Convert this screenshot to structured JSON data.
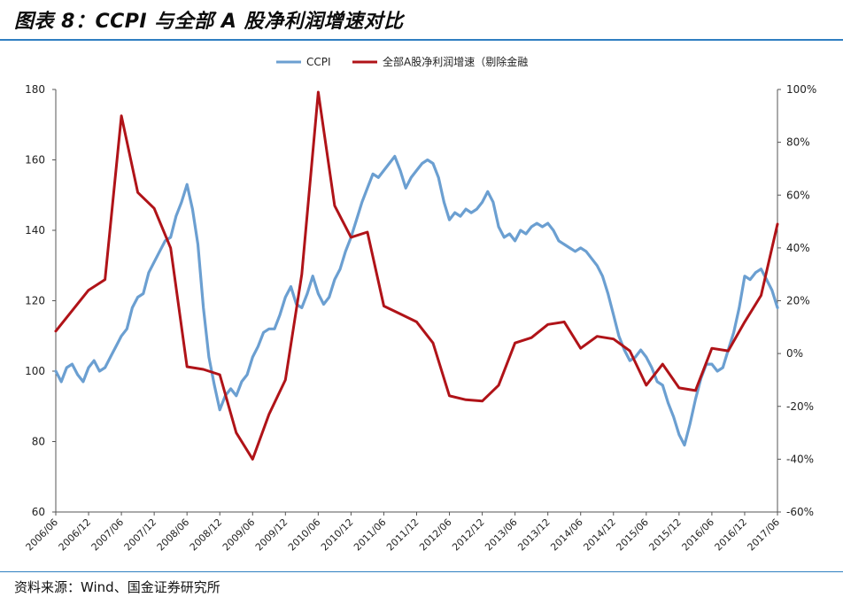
{
  "title": "图表 8：CCPI 与全部 A 股净利润增速对比",
  "source": "资料来源：Wind、国金证券研究所",
  "chart_data": {
    "type": "line",
    "title": "图表 8：CCPI 与全部 A 股净利润增速对比",
    "legend_position": "top-center",
    "x_tick_labels": [
      "2006/06",
      "2006/12",
      "2007/06",
      "2007/12",
      "2008/06",
      "2008/12",
      "2009/06",
      "2009/12",
      "2010/06",
      "2010/12",
      "2011/06",
      "2011/12",
      "2012/06",
      "2012/12",
      "2013/06",
      "2013/12",
      "2014/06",
      "2014/12",
      "2015/06",
      "2015/12",
      "2016/06",
      "2016/12",
      "2017/06"
    ],
    "left_axis": {
      "range": [
        60,
        180
      ],
      "ticks": [
        "60",
        "80",
        "100",
        "120",
        "140",
        "160",
        "180"
      ]
    },
    "right_axis": {
      "range": [
        -60,
        100
      ],
      "ticks": [
        "-60%",
        "-40%",
        "-20%",
        "0%",
        "20%",
        "40%",
        "60%",
        "80%",
        "100%"
      ]
    },
    "grid": false,
    "series": [
      {
        "name": "CCPI",
        "axis": "left",
        "color": "#6b9fd1",
        "points": [
          [
            "2006/06",
            100
          ],
          [
            "2006/07",
            97
          ],
          [
            "2006/08",
            101
          ],
          [
            "2006/09",
            102
          ],
          [
            "2006/10",
            99
          ],
          [
            "2006/11",
            97
          ],
          [
            "2006/12",
            101
          ],
          [
            "2007/01",
            103
          ],
          [
            "2007/02",
            100
          ],
          [
            "2007/03",
            101
          ],
          [
            "2007/04",
            104
          ],
          [
            "2007/05",
            107
          ],
          [
            "2007/06",
            110
          ],
          [
            "2007/07",
            112
          ],
          [
            "2007/08",
            118
          ],
          [
            "2007/09",
            121
          ],
          [
            "2007/10",
            122
          ],
          [
            "2007/11",
            128
          ],
          [
            "2007/12",
            131
          ],
          [
            "2008/01",
            134
          ],
          [
            "2008/02",
            137
          ],
          [
            "2008/03",
            138
          ],
          [
            "2008/04",
            144
          ],
          [
            "2008/05",
            148
          ],
          [
            "2008/06",
            153
          ],
          [
            "2008/07",
            146
          ],
          [
            "2008/08",
            136
          ],
          [
            "2008/09",
            118
          ],
          [
            "2008/10",
            104
          ],
          [
            "2008/11",
            96
          ],
          [
            "2008/12",
            89
          ],
          [
            "2009/01",
            93
          ],
          [
            "2009/02",
            95
          ],
          [
            "2009/03",
            93
          ],
          [
            "2009/04",
            97
          ],
          [
            "2009/05",
            99
          ],
          [
            "2009/06",
            104
          ],
          [
            "2009/07",
            107
          ],
          [
            "2009/08",
            111
          ],
          [
            "2009/09",
            112
          ],
          [
            "2009/10",
            112
          ],
          [
            "2009/11",
            116
          ],
          [
            "2009/12",
            121
          ],
          [
            "2010/01",
            124
          ],
          [
            "2010/02",
            119
          ],
          [
            "2010/03",
            118
          ],
          [
            "2010/04",
            122
          ],
          [
            "2010/05",
            127
          ],
          [
            "2010/06",
            122
          ],
          [
            "2010/07",
            119
          ],
          [
            "2010/08",
            121
          ],
          [
            "2010/09",
            126
          ],
          [
            "2010/10",
            129
          ],
          [
            "2010/11",
            134
          ],
          [
            "2010/12",
            138
          ],
          [
            "2011/01",
            143
          ],
          [
            "2011/02",
            148
          ],
          [
            "2011/03",
            152
          ],
          [
            "2011/04",
            156
          ],
          [
            "2011/05",
            155
          ],
          [
            "2011/06",
            157
          ],
          [
            "2011/07",
            159
          ],
          [
            "2011/08",
            161
          ],
          [
            "2011/09",
            157
          ],
          [
            "2011/10",
            152
          ],
          [
            "2011/11",
            155
          ],
          [
            "2011/12",
            157
          ],
          [
            "2012/01",
            159
          ],
          [
            "2012/02",
            160
          ],
          [
            "2012/03",
            159
          ],
          [
            "2012/04",
            155
          ],
          [
            "2012/05",
            148
          ],
          [
            "2012/06",
            143
          ],
          [
            "2012/07",
            145
          ],
          [
            "2012/08",
            144
          ],
          [
            "2012/09",
            146
          ],
          [
            "2012/10",
            145
          ],
          [
            "2012/11",
            146
          ],
          [
            "2012/12",
            148
          ],
          [
            "2013/01",
            151
          ],
          [
            "2013/02",
            148
          ],
          [
            "2013/03",
            141
          ],
          [
            "2013/04",
            138
          ],
          [
            "2013/05",
            139
          ],
          [
            "2013/06",
            137
          ],
          [
            "2013/07",
            140
          ],
          [
            "2013/08",
            139
          ],
          [
            "2013/09",
            141
          ],
          [
            "2013/10",
            142
          ],
          [
            "2013/11",
            141
          ],
          [
            "2013/12",
            142
          ],
          [
            "2014/01",
            140
          ],
          [
            "2014/02",
            137
          ],
          [
            "2014/03",
            136
          ],
          [
            "2014/04",
            135
          ],
          [
            "2014/05",
            134
          ],
          [
            "2014/06",
            135
          ],
          [
            "2014/07",
            134
          ],
          [
            "2014/08",
            132
          ],
          [
            "2014/09",
            130
          ],
          [
            "2014/10",
            127
          ],
          [
            "2014/11",
            122
          ],
          [
            "2014/12",
            116
          ],
          [
            "2015/01",
            110
          ],
          [
            "2015/02",
            106
          ],
          [
            "2015/03",
            103
          ],
          [
            "2015/04",
            104
          ],
          [
            "2015/05",
            106
          ],
          [
            "2015/06",
            104
          ],
          [
            "2015/07",
            101
          ],
          [
            "2015/08",
            97
          ],
          [
            "2015/09",
            96
          ],
          [
            "2015/10",
            91
          ],
          [
            "2015/11",
            87
          ],
          [
            "2015/12",
            82
          ],
          [
            "2016/01",
            79
          ],
          [
            "2016/02",
            85
          ],
          [
            "2016/03",
            92
          ],
          [
            "2016/04",
            98
          ],
          [
            "2016/05",
            102
          ],
          [
            "2016/06",
            102
          ],
          [
            "2016/07",
            100
          ],
          [
            "2016/08",
            101
          ],
          [
            "2016/09",
            106
          ],
          [
            "2016/10",
            111
          ],
          [
            "2016/11",
            118
          ],
          [
            "2016/12",
            127
          ],
          [
            "2017/01",
            126
          ],
          [
            "2017/02",
            128
          ],
          [
            "2017/03",
            129
          ],
          [
            "2017/04",
            126
          ],
          [
            "2017/05",
            123
          ],
          [
            "2017/06",
            118
          ]
        ]
      },
      {
        "name": "全部A股净利润增速（剔除金融",
        "axis": "right",
        "color": "#b01318",
        "points": [
          [
            "2006/06",
            8.5
          ],
          [
            "2006/12",
            24
          ],
          [
            "2007/03",
            28
          ],
          [
            "2007/06",
            90
          ],
          [
            "2007/09",
            61
          ],
          [
            "2007/12",
            55
          ],
          [
            "2008/03",
            40
          ],
          [
            "2008/06",
            -5
          ],
          [
            "2008/09",
            -6
          ],
          [
            "2008/12",
            -8
          ],
          [
            "2009/03",
            -30
          ],
          [
            "2009/06",
            -40
          ],
          [
            "2009/09",
            -23
          ],
          [
            "2009/12",
            -10
          ],
          [
            "2010/03",
            30
          ],
          [
            "2010/06",
            99
          ],
          [
            "2010/09",
            56
          ],
          [
            "2010/12",
            44
          ],
          [
            "2011/03",
            46
          ],
          [
            "2011/06",
            18
          ],
          [
            "2011/09",
            15
          ],
          [
            "2011/12",
            12
          ],
          [
            "2012/03",
            4
          ],
          [
            "2012/06",
            -16
          ],
          [
            "2012/09",
            -17.5
          ],
          [
            "2012/12",
            -18
          ],
          [
            "2013/03",
            -12
          ],
          [
            "2013/06",
            4
          ],
          [
            "2013/09",
            6
          ],
          [
            "2013/12",
            11
          ],
          [
            "2014/03",
            12
          ],
          [
            "2014/06",
            2
          ],
          [
            "2014/09",
            6.5
          ],
          [
            "2014/12",
            5.5
          ],
          [
            "2015/03",
            1
          ],
          [
            "2015/06",
            -12
          ],
          [
            "2015/09",
            -4
          ],
          [
            "2015/12",
            -13
          ],
          [
            "2016/03",
            -14
          ],
          [
            "2016/06",
            2
          ],
          [
            "2016/09",
            1
          ],
          [
            "2016/12",
            12
          ],
          [
            "2017/03",
            22
          ],
          [
            "2017/06",
            49
          ]
        ]
      }
    ]
  }
}
